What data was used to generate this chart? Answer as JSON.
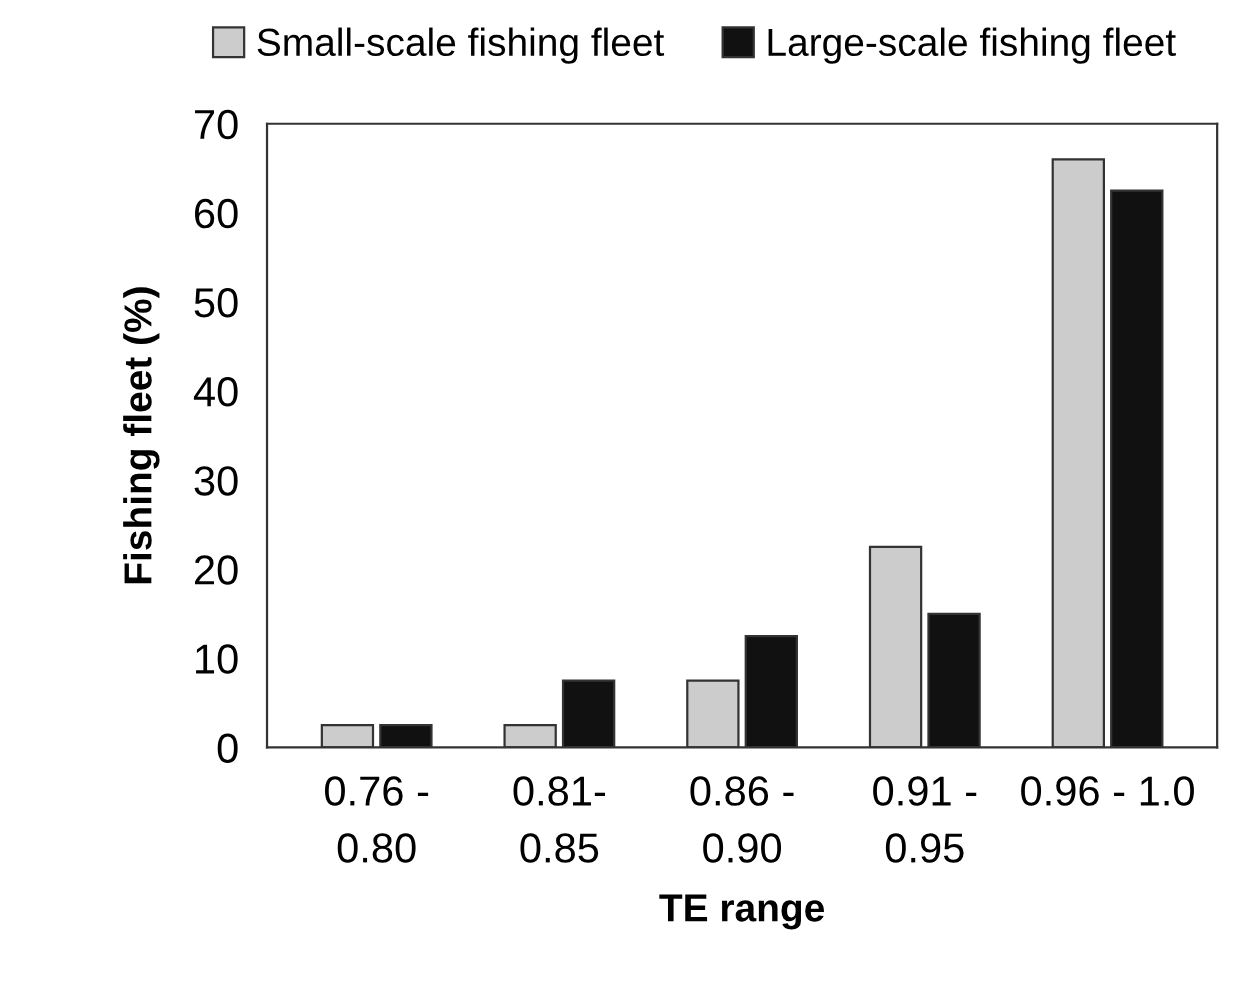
{
  "chart_data": {
    "type": "bar",
    "xlabel": "TE range",
    "ylabel": "Fishing fleet (%)",
    "categories": [
      "0.76 -\n0.80",
      "0.81-\n0.85",
      "0.86 -\n0.90",
      "0.91 -\n0.95",
      "0.96 - 1.0"
    ],
    "series": [
      {
        "name": "Small-scale fishing fleet",
        "color": "#cccccc",
        "values": [
          2.5,
          2.5,
          7.5,
          22.5,
          66
        ]
      },
      {
        "name": "Large-scale fishing fleet",
        "color": "#111111",
        "values": [
          2.5,
          7.5,
          12.5,
          15,
          62.5
        ]
      }
    ],
    "ylim": [
      0,
      70
    ],
    "yticks": [
      0,
      10,
      20,
      30,
      40,
      50,
      60,
      70
    ],
    "grid": false,
    "legend": "top"
  }
}
